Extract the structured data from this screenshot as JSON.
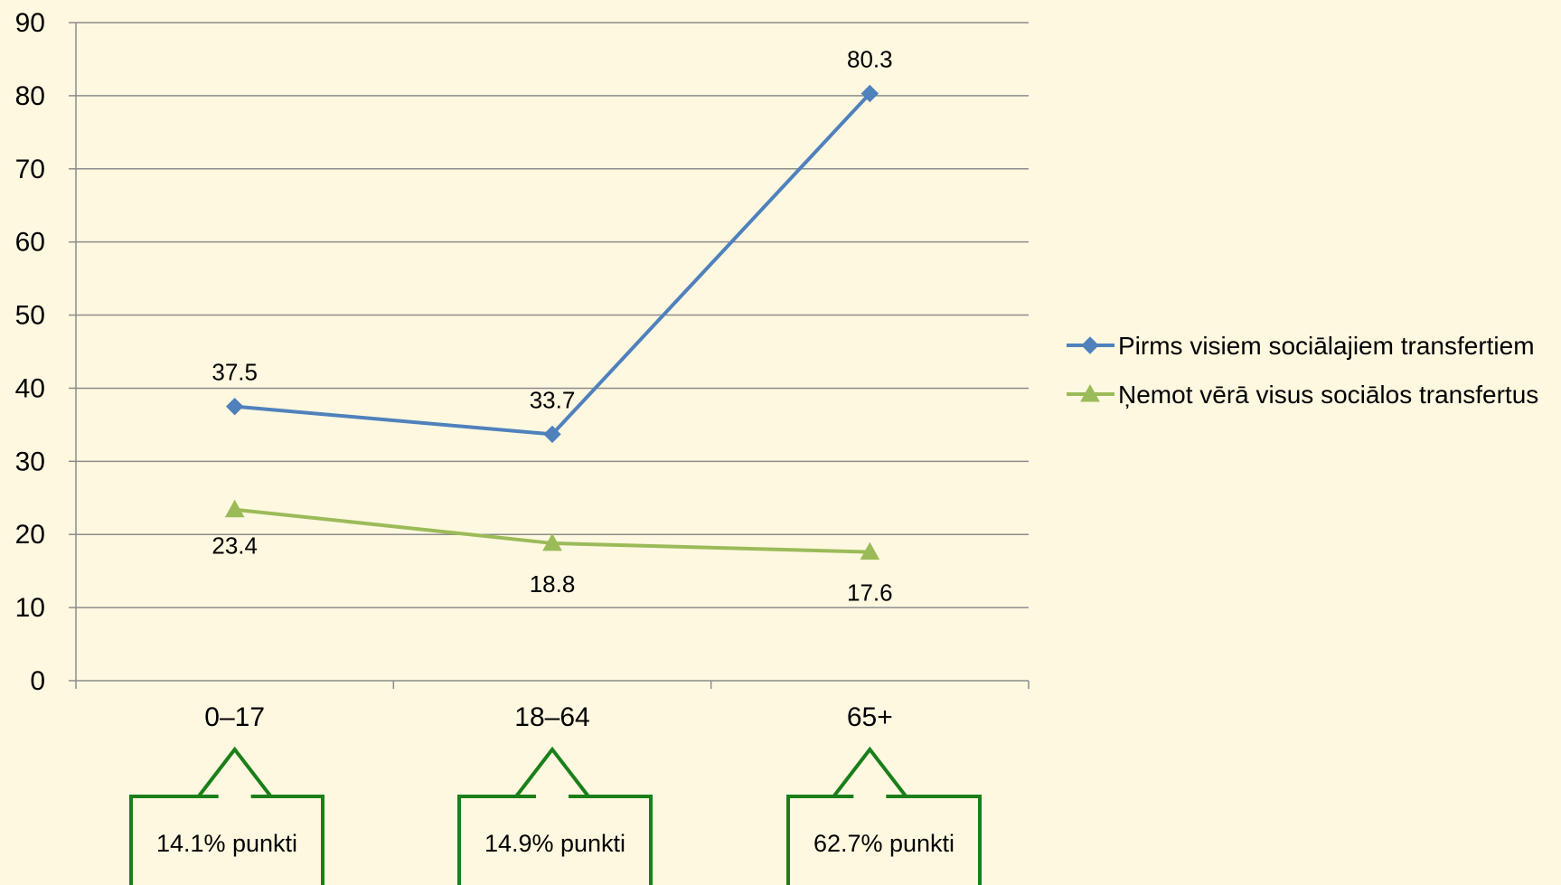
{
  "chart_data": {
    "type": "line",
    "categories": [
      "0–17",
      "18–64",
      "65+"
    ],
    "series": [
      {
        "name": "Pirms visiem sociālajiem transfertiem",
        "values": [
          37.5,
          33.7,
          80.3
        ],
        "labels": [
          "37.5",
          "33.7",
          "80.3"
        ],
        "color": "#4f81bd",
        "marker": "diamond"
      },
      {
        "name": "Ņemot vērā visus sociālos transfertus",
        "values": [
          23.4,
          18.8,
          17.6
        ],
        "labels": [
          "23.4",
          "18.8",
          "17.6"
        ],
        "color": "#9bbb59",
        "marker": "triangle"
      }
    ],
    "ylim": [
      0,
      90
    ],
    "y_ticks": [
      0,
      10,
      20,
      30,
      40,
      50,
      60,
      70,
      80,
      90
    ],
    "y_tick_labels": [
      "0",
      "10",
      "20",
      "30",
      "40",
      "50",
      "60",
      "70",
      "80",
      "90"
    ],
    "grid": true,
    "legend_position": "right",
    "title": "",
    "xlabel": "",
    "ylabel": ""
  },
  "callouts": [
    {
      "category": "0–17",
      "text": "14.1% punkti"
    },
    {
      "category": "18–64",
      "text": "14.9% punkti"
    },
    {
      "category": "65+",
      "text": "62.7% punkti"
    }
  ],
  "colors": {
    "background": "#fff8e0",
    "grid": "#8c8c8c",
    "axis": "#8c8c8c",
    "callout_border": "#1a7f1a",
    "callout_fill": "#fff8e0"
  }
}
